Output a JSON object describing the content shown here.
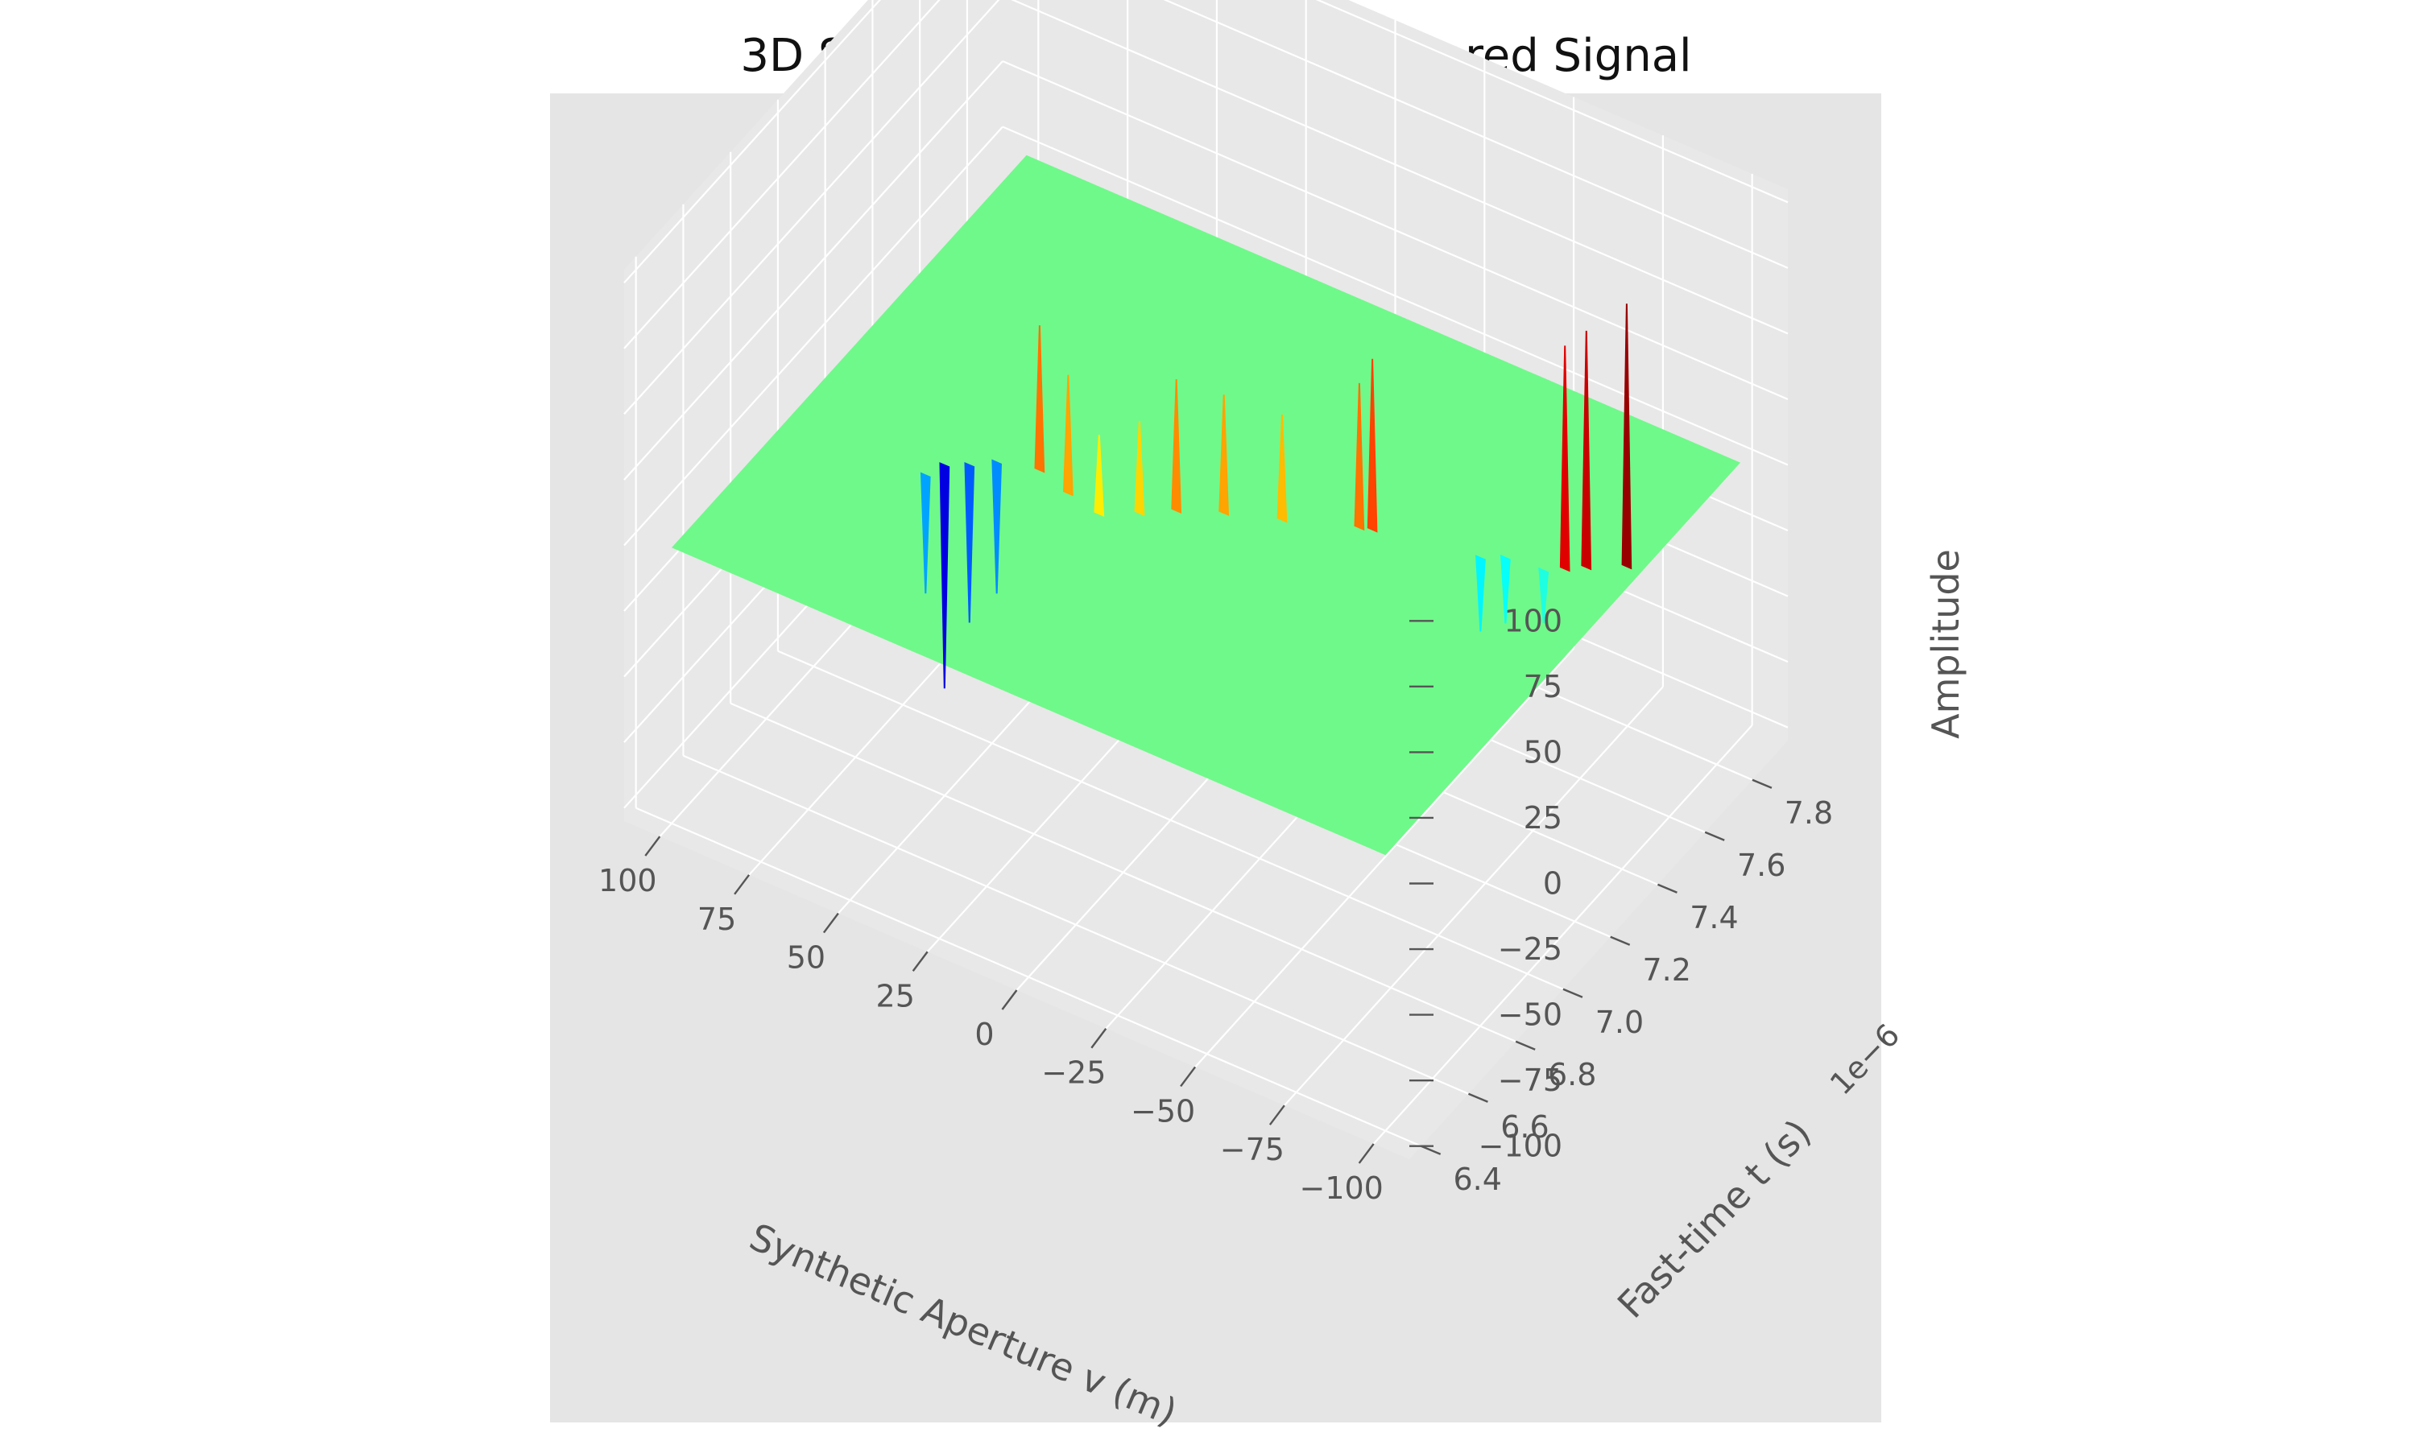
{
  "chart_data": {
    "type": "surface",
    "title": "3D Surface Plot of Matched-Filtered Signal",
    "xlabel": "Synthetic Aperture v (m)",
    "ylabel": "Fast-time t (s)",
    "zlabel": "Amplitude",
    "y_offset_label": "1e−6",
    "xlim": [
      -110,
      110
    ],
    "ylim": [
      6.35,
      7.95
    ],
    "zlim": [
      -105,
      105
    ],
    "grid": true,
    "colormap": "jet",
    "background": "#e5e5e5",
    "x_ticks": [
      -100,
      -75,
      -50,
      -25,
      0,
      25,
      50,
      75,
      100
    ],
    "x_tick_labels": [
      "−100",
      "−75",
      "−50",
      "−25",
      "0",
      "25",
      "50",
      "75",
      "100"
    ],
    "y_ticks": [
      6.4,
      6.6,
      6.8,
      7.0,
      7.2,
      7.4,
      7.6,
      7.8
    ],
    "y_tick_labels": [
      "6.4",
      "6.6",
      "6.8",
      "7.0",
      "7.2",
      "7.4",
      "7.6",
      "7.8"
    ],
    "z_ticks": [
      -100,
      -75,
      -50,
      -25,
      0,
      25,
      50,
      75,
      100
    ],
    "z_tick_labels": [
      "−100",
      "−75",
      "−50",
      "−25",
      "0",
      "25",
      "50",
      "75",
      "100"
    ],
    "surface": {
      "x_range": [
        -100,
        100
      ],
      "y_range": [
        6.4,
        7.9
      ],
      "baseline_z": 0
    },
    "peaks": [
      {
        "x": -96,
        "y": 7.48,
        "z": 100
      },
      {
        "x": -88,
        "y": 7.43,
        "z": 90
      },
      {
        "x": -84,
        "y": 7.4,
        "z": 85
      },
      {
        "x": -80,
        "y": 7.37,
        "z": -20
      },
      {
        "x": -70,
        "y": 7.36,
        "z": -25
      },
      {
        "x": -65,
        "y": 7.33,
        "z": -28
      },
      {
        "x": -38,
        "y": 7.28,
        "z": 65
      },
      {
        "x": -35,
        "y": 7.27,
        "z": 55
      },
      {
        "x": -18,
        "y": 7.2,
        "z": 40
      },
      {
        "x": -5,
        "y": 7.15,
        "z": 45
      },
      {
        "x": 5,
        "y": 7.1,
        "z": 50
      },
      {
        "x": 12,
        "y": 7.05,
        "z": 35
      },
      {
        "x": 20,
        "y": 7.0,
        "z": 30
      },
      {
        "x": 30,
        "y": 7.02,
        "z": 45
      },
      {
        "x": 40,
        "y": 7.05,
        "z": 55
      },
      {
        "x": 50,
        "y": 7.02,
        "z": -50
      },
      {
        "x": 55,
        "y": 6.98,
        "z": -60
      },
      {
        "x": 60,
        "y": 6.95,
        "z": -85
      },
      {
        "x": 62,
        "y": 6.9,
        "z": -45
      }
    ]
  }
}
